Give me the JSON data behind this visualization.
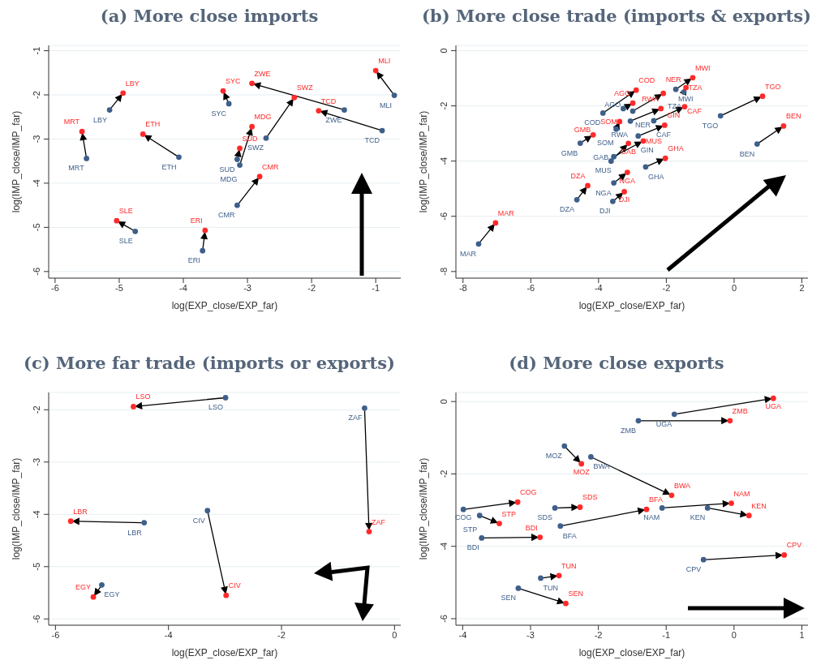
{
  "chart_data": [
    {
      "type": "scatter",
      "title": "(a) More close imports",
      "xlabel": "log(EXP_close/EXP_far)",
      "ylabel": "log(IMP_close/IMP_far)",
      "xlim": [
        -6.1,
        -0.61
      ],
      "ylim": [
        -6.15,
        -0.88
      ],
      "xticks": [
        -6,
        -5,
        -4,
        -3,
        -2,
        -1
      ],
      "yticks": [
        -6,
        -5,
        -4,
        -3,
        -2,
        -1
      ],
      "grid": "y",
      "marker": "circle",
      "series": [
        {
          "color": "#3e5f8a",
          "value_labels": [
            "LBY",
            "MRT",
            "ETH",
            "SLE",
            "ERI",
            "SYC",
            "SUD",
            "MDG",
            "SWZ",
            "CMR",
            "ZWE",
            "MLI",
            "TCD"
          ],
          "x": [
            -5.15,
            -5.51,
            -4.07,
            -4.75,
            -3.7,
            -3.29,
            -3.16,
            -3.12,
            -2.71,
            -3.16,
            -1.49,
            -0.71,
            -0.9
          ],
          "values": [
            -2.34,
            -3.44,
            -3.41,
            -5.09,
            -5.53,
            -2.2,
            -3.46,
            -3.59,
            -2.98,
            -4.5,
            -2.34,
            -2.01,
            -2.81
          ]
        },
        {
          "color": "#ff2a2a",
          "value_labels": [
            "LBY",
            "MRT",
            "ETH",
            "SLE",
            "ERI",
            "SYC",
            "SUD",
            "MDG",
            "SWZ",
            "CMR",
            "ZWE",
            "MLI",
            "TCD"
          ],
          "x": [
            -4.94,
            -5.58,
            -4.63,
            -5.04,
            -3.66,
            -3.38,
            -3.12,
            -2.93,
            -2.27,
            -2.81,
            -2.93,
            -1.0,
            -1.89
          ],
          "values": [
            -1.96,
            -2.83,
            -2.89,
            -4.85,
            -5.07,
            -1.91,
            -3.21,
            -2.72,
            -2.06,
            -3.85,
            -1.74,
            -1.45,
            -2.36
          ]
        }
      ]
    },
    {
      "type": "scatter",
      "title": "(b) More close trade (imports & exports)",
      "xlabel": "log(EXP_close/EXP_far)",
      "ylabel": "log(IMP_close/IMP_far)",
      "xlim": [
        -8.21,
        2.18
      ],
      "ylim": [
        -8.24,
        0.19
      ],
      "xticks": [
        -8,
        -6,
        -4,
        -2,
        0,
        2
      ],
      "yticks": [
        -8,
        -6,
        -4,
        -2,
        0
      ],
      "grid": "y",
      "marker": "circle",
      "series": [
        {
          "color": "#3e5f8a",
          "value_labels": [
            "COD",
            "AGO",
            "NER",
            "RWA",
            "SOM",
            "GMB",
            "GIN",
            "MUS",
            "GAB",
            "GHA",
            "NGA",
            "DZA",
            "DJI",
            "CAF",
            "MWI",
            "TZA",
            "TGO",
            "BEN",
            "MAR"
          ],
          "x": [
            -3.87,
            -3.27,
            -2.99,
            -3.06,
            -3.48,
            -4.54,
            -2.83,
            -3.55,
            -3.63,
            -2.61,
            -3.55,
            -4.64,
            -3.58,
            -2.37,
            -1.72,
            -1.48,
            -0.4,
            0.68,
            -7.54
          ],
          "values": [
            -2.26,
            -2.1,
            -2.19,
            -2.55,
            -2.84,
            -3.35,
            -3.09,
            -3.84,
            -4.0,
            -4.21,
            -4.79,
            -5.4,
            -5.46,
            -2.54,
            -1.4,
            -1.5,
            -2.36,
            -3.38,
            -7.0
          ]
        },
        {
          "color": "#ff2a2a",
          "value_labels": [
            "COD",
            "AGO",
            "NER",
            "RWA",
            "SOM",
            "GMB",
            "GIN",
            "MUS",
            "GAB",
            "GHA",
            "NGA",
            "DZA",
            "DJI",
            "CAF",
            "MWI",
            "TZA",
            "TGO",
            "BEN",
            "MAR"
          ],
          "x": [
            -2.89,
            -2.99,
            -2.09,
            -2.16,
            -3.38,
            -4.16,
            -2.05,
            -2.68,
            -3.12,
            -2.03,
            -3.15,
            -4.32,
            -3.24,
            -1.46,
            -1.22,
            -1.42,
            0.84,
            1.46,
            -7.04
          ],
          "values": [
            -1.43,
            -1.9,
            -1.55,
            -2.1,
            -2.57,
            -3.05,
            -2.7,
            -3.27,
            -3.36,
            -3.9,
            -4.41,
            -4.89,
            -5.11,
            -2.03,
            -0.98,
            -1.34,
            -1.65,
            -2.73,
            -6.24
          ]
        }
      ]
    },
    {
      "type": "scatter",
      "title": "(c) More far trade (imports or exports)",
      "xlabel": "log(EXP_close/EXP_far)",
      "ylabel": "log(IMP_close/IMP_far)",
      "xlim": [
        -6.12,
        0.11
      ],
      "ylim": [
        -6.12,
        -1.67
      ],
      "xticks": [
        -6,
        -4,
        -2,
        0
      ],
      "yticks": [
        -6,
        -5,
        -4,
        -3,
        -2
      ],
      "grid": "y",
      "marker": "circle",
      "series": [
        {
          "color": "#3e5f8a",
          "value_labels": [
            "LSO",
            "ZAF",
            "LBR",
            "CIV",
            "EGY"
          ],
          "x": [
            -2.99,
            -0.53,
            -4.43,
            -3.31,
            -5.18
          ],
          "values": [
            -1.77,
            -1.97,
            -4.16,
            -3.93,
            -5.35
          ]
        },
        {
          "color": "#ff2a2a",
          "value_labels": [
            "LSO",
            "ZAF",
            "LBR",
            "CIV",
            "EGY"
          ],
          "x": [
            -4.62,
            -0.45,
            -5.73,
            -2.98,
            -5.33
          ],
          "values": [
            -1.94,
            -4.33,
            -4.13,
            -5.55,
            -5.58
          ]
        }
      ]
    },
    {
      "type": "scatter",
      "title": "(d) More close exports",
      "xlabel": "log(EXP_close/EXP_far)",
      "ylabel": "log(IMP_close/IMP_far)",
      "xlim": [
        -4.1,
        1.09
      ],
      "ylim": [
        -6.18,
        0.25
      ],
      "xticks": [
        -4,
        -3,
        -2,
        -1,
        0,
        1
      ],
      "yticks": [
        -6,
        -4,
        -2,
        0
      ],
      "grid": "y",
      "marker": "circle",
      "series": [
        {
          "color": "#3e5f8a",
          "value_labels": [
            "UGA",
            "ZMB",
            "MOZ",
            "BWA",
            "COG",
            "STP",
            "SDS",
            "BFA",
            "BDI",
            "NAM",
            "KEN",
            "CPV",
            "TUN",
            "SEN"
          ],
          "x": [
            -0.88,
            -1.41,
            -2.5,
            -2.11,
            -3.99,
            -3.75,
            -2.64,
            -2.56,
            -3.72,
            -1.06,
            -0.39,
            -0.45,
            -2.85,
            -3.18
          ],
          "values": [
            -0.35,
            -0.53,
            -1.23,
            -1.53,
            -2.98,
            -3.15,
            -2.94,
            -3.44,
            -3.77,
            -2.94,
            -2.94,
            -4.37,
            -4.88,
            -5.16
          ]
        },
        {
          "color": "#ff2a2a",
          "value_labels": [
            "UGA",
            "ZMB",
            "MOZ",
            "BWA",
            "COG",
            "STP",
            "SDS",
            "BFA",
            "BDI",
            "NAM",
            "KEN",
            "CPV",
            "TUN",
            "SEN"
          ],
          "x": [
            0.58,
            -0.06,
            -2.25,
            -0.92,
            -3.19,
            -3.46,
            -2.27,
            -1.29,
            -2.86,
            -0.04,
            0.22,
            0.74,
            -2.58,
            -2.48
          ],
          "values": [
            0.09,
            -0.53,
            -1.72,
            -2.59,
            -2.78,
            -3.37,
            -2.92,
            -2.98,
            -3.75,
            -2.81,
            -3.15,
            -4.24,
            -4.81,
            -5.58
          ]
        }
      ]
    }
  ]
}
